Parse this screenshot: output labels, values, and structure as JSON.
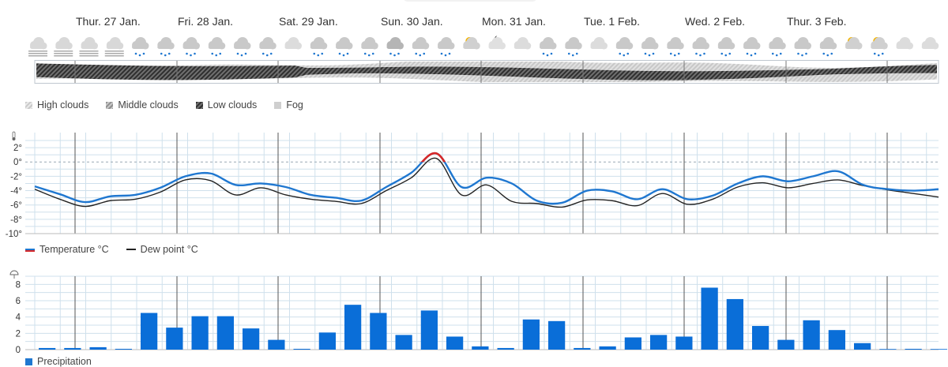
{
  "days": [
    "Thur. 27 Jan.",
    "Fri. 28 Jan.",
    "Sat. 29 Jan.",
    "Sun. 30 Jan.",
    "Mon. 31 Jan.",
    "Tue. 1 Feb.",
    "Wed. 2 Feb.",
    "Thur. 3 Feb."
  ],
  "weather_icons": [
    "fog-icon",
    "fog-icon",
    "fog-icon",
    "fog-icon",
    "snow-cloud-icon",
    "snow-cloud-icon",
    "snow-cloud-icon",
    "snow-cloud-icon",
    "snow-cloud-icon",
    "snow-cloud-icon",
    "cloud-icon",
    "snow-cloud-icon",
    "snow-cloud-icon",
    "snow-cloud-icon",
    "snow-rain-cloud-icon",
    "snow-cloud-icon",
    "snow-cloud-icon",
    "partly-sunny-icon",
    "moon-cloud-icon",
    "cloud-icon",
    "snow-cloud-icon",
    "snow-cloud-icon",
    "cloud-icon",
    "snow-cloud-icon",
    "snow-cloud-icon",
    "snow-cloud-icon",
    "snow-cloud-icon",
    "snow-cloud-icon",
    "snow-cloud-icon",
    "snow-cloud-icon",
    "snow-cloud-icon",
    "snow-cloud-icon",
    "partly-sunny-icon",
    "partly-sunny-icon",
    "cloud-icon",
    "cloud-icon"
  ],
  "cloud_legend": [
    {
      "label": "High clouds",
      "swatch": "high"
    },
    {
      "label": "Middle clouds",
      "swatch": "mid"
    },
    {
      "label": "Low clouds",
      "swatch": "low"
    },
    {
      "label": "Fog",
      "swatch": "fog"
    }
  ],
  "temp_legend": [
    {
      "label": "Temperature °C",
      "color": "#1f77d0"
    },
    {
      "label": "Dew point °C",
      "color": "#222222"
    }
  ],
  "precip_legend": {
    "label": "Precipitation",
    "color": "#1f77d0"
  },
  "colors": {
    "temperature": "#1f77d0",
    "temperature_above_zero": "#d62728",
    "dew_point": "#222222",
    "precipitation": "#0a6ed8",
    "grid": "#cfe0ec",
    "day_line": "#555555"
  },
  "chart_data": [
    {
      "type": "line",
      "axis_icon": "thermometer-icon",
      "ylim": [
        -10,
        3
      ],
      "yticks": [
        "2°",
        "0°",
        "-2°",
        "-4°",
        "-6°",
        "-8°",
        "-10°"
      ],
      "x_hours": [
        0,
        6,
        12,
        18,
        24,
        30,
        36,
        42,
        48,
        54,
        60,
        66,
        72,
        78,
        84,
        90,
        96,
        102,
        108,
        114,
        120,
        126,
        132,
        138,
        144,
        150,
        156,
        162,
        168,
        174,
        180,
        186,
        192,
        198,
        204,
        210,
        216
      ],
      "series": [
        {
          "name": "Temperature °C",
          "values": [
            -3.4,
            -4.5,
            -5.6,
            -4.8,
            -4.6,
            -3.6,
            -2.0,
            -1.6,
            -3.2,
            -3.0,
            -3.5,
            -4.6,
            -5.0,
            -5.4,
            -3.5,
            -1.5,
            1.2,
            -3.5,
            -2.2,
            -3.0,
            -5.4,
            -5.7,
            -4.0,
            -4.1,
            -5.2,
            -3.8,
            -5.2,
            -4.7,
            -3.0,
            -2.0,
            -2.7,
            -2.0,
            -1.3,
            -3.2,
            -3.8,
            -4.0,
            -3.8
          ]
        },
        {
          "name": "Dew point °C",
          "values": [
            -3.8,
            -5.2,
            -6.2,
            -5.4,
            -5.2,
            -4.2,
            -2.5,
            -2.6,
            -4.6,
            -3.6,
            -4.6,
            -5.2,
            -5.5,
            -5.8,
            -4.0,
            -2.2,
            0.5,
            -4.6,
            -3.2,
            -5.5,
            -5.8,
            -6.3,
            -5.3,
            -5.4,
            -6.1,
            -4.4,
            -5.9,
            -5.2,
            -3.5,
            -2.9,
            -3.6,
            -3.0,
            -2.5,
            -3.3,
            -3.9,
            -4.4,
            -4.9
          ]
        }
      ]
    },
    {
      "type": "bar",
      "axis_icon": "umbrella-icon",
      "ylim": [
        0,
        9
      ],
      "yticks": [
        "8",
        "6",
        "4",
        "2",
        "0"
      ],
      "series": [
        {
          "name": "Precipitation",
          "values": [
            0.2,
            0.2,
            0.3,
            0.1,
            4.5,
            2.7,
            4.1,
            4.1,
            2.6,
            1.2,
            0.1,
            2.1,
            5.5,
            4.5,
            1.8,
            4.8,
            1.6,
            0.4,
            0.2,
            3.7,
            3.5,
            0.2,
            0.4,
            1.5,
            1.8,
            1.6,
            7.6,
            6.2,
            2.9,
            1.2,
            3.6,
            2.4,
            0.8,
            0,
            0.1,
            0
          ]
        }
      ]
    }
  ]
}
